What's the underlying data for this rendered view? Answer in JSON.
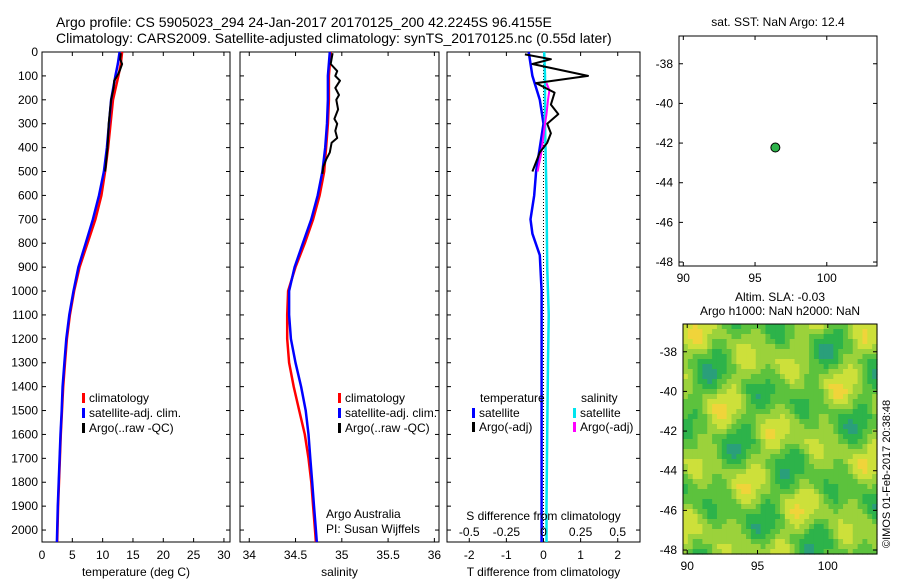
{
  "title_line1": "Argo profile: CS 5905023_294 24-Jan-2017 20170125_200 42.2245S 96.4155E",
  "title_line2": "Climatology: CARS2009. Satellite-adjusted climatology: synTS_20170125.nc (0.55d later)",
  "stamp": "©IMOS 01-Feb-2017 20:38:48",
  "colors": {
    "climatology": "#ff0000",
    "satellite": "#0000ff",
    "argo": "#000000",
    "sal_satellite": "#00e5ee",
    "sal_argo": "#ff00ff",
    "float": "#2db34a"
  },
  "chart_data": [
    {
      "type": "line",
      "xlabel": "temperature (deg C)",
      "ylabel": "",
      "xlim": [
        0,
        31
      ],
      "ylim": [
        2050,
        0
      ],
      "xticks": [
        "0",
        "5",
        "10",
        "15",
        "20",
        "25",
        "30"
      ],
      "yticks": [
        "0",
        "100",
        "200",
        "300",
        "400",
        "500",
        "600",
        "700",
        "800",
        "900",
        "1000",
        "1100",
        "1200",
        "1300",
        "1400",
        "1500",
        "1600",
        "1700",
        "1800",
        "1900",
        "2000"
      ],
      "legend": [
        "climatology",
        "satellite-adj. clim.",
        "Argo(..raw -QC)"
      ],
      "series": [
        {
          "name": "climatology",
          "points": [
            [
              13.2,
              0
            ],
            [
              13.0,
              50
            ],
            [
              12.6,
              100
            ],
            [
              11.7,
              200
            ],
            [
              10.9,
              400
            ],
            [
              10.4,
              500
            ],
            [
              9.8,
              600
            ],
            [
              8.8,
              700
            ],
            [
              7.5,
              800
            ],
            [
              6.2,
              900
            ],
            [
              5.3,
              1000
            ],
            [
              4.6,
              1100
            ],
            [
              4.1,
              1200
            ],
            [
              3.8,
              1300
            ],
            [
              3.5,
              1400
            ],
            [
              3.3,
              1500
            ],
            [
              3.1,
              1600
            ],
            [
              2.95,
              1700
            ],
            [
              2.8,
              1800
            ],
            [
              2.65,
              1900
            ],
            [
              2.55,
              2000
            ],
            [
              2.5,
              2050
            ]
          ]
        },
        {
          "name": "satellite-adj. clim.",
          "points": [
            [
              12.8,
              0
            ],
            [
              12.5,
              50
            ],
            [
              12.1,
              100
            ],
            [
              11.4,
              200
            ],
            [
              10.7,
              400
            ],
            [
              10.2,
              500
            ],
            [
              9.4,
              600
            ],
            [
              8.4,
              700
            ],
            [
              7.2,
              800
            ],
            [
              6.0,
              900
            ],
            [
              5.2,
              1000
            ],
            [
              4.5,
              1100
            ],
            [
              4.0,
              1200
            ],
            [
              3.7,
              1300
            ],
            [
              3.4,
              1400
            ],
            [
              3.25,
              1500
            ],
            [
              3.05,
              1600
            ],
            [
              2.9,
              1700
            ],
            [
              2.75,
              1800
            ],
            [
              2.6,
              1900
            ],
            [
              2.5,
              2000
            ],
            [
              2.45,
              2050
            ]
          ]
        },
        {
          "name": "Argo(..raw -QC)",
          "points": [
            [
              13.0,
              5
            ],
            [
              12.9,
              30
            ],
            [
              13.2,
              50
            ],
            [
              12.8,
              80
            ],
            [
              12.4,
              100
            ],
            [
              11.9,
              120
            ],
            [
              11.8,
              150
            ],
            [
              11.4,
              200
            ],
            [
              11.0,
              300
            ],
            [
              10.8,
              400
            ],
            [
              10.5,
              480
            ],
            [
              10.4,
              500
            ]
          ]
        }
      ]
    },
    {
      "type": "line",
      "xlabel": "salinity",
      "ylabel": "",
      "xlim": [
        33.9,
        36.05
      ],
      "ylim": [
        2050,
        0
      ],
      "xticks": [
        "34",
        "34.5",
        "35",
        "35.5",
        "36"
      ],
      "legend": [
        "climatology",
        "satellite-adj. clim.",
        "Argo(..raw -QC)"
      ],
      "annotation": [
        "Argo Australia",
        "PI: Susan Wijffels"
      ],
      "series": [
        {
          "name": "climatology",
          "points": [
            [
              34.88,
              0
            ],
            [
              34.86,
              100
            ],
            [
              34.86,
              200
            ],
            [
              34.85,
              300
            ],
            [
              34.83,
              400
            ],
            [
              34.81,
              500
            ],
            [
              34.76,
              600
            ],
            [
              34.69,
              700
            ],
            [
              34.6,
              800
            ],
            [
              34.5,
              900
            ],
            [
              34.42,
              1000
            ],
            [
              34.41,
              1100
            ],
            [
              34.41,
              1200
            ],
            [
              34.43,
              1300
            ],
            [
              34.48,
              1400
            ],
            [
              34.54,
              1500
            ],
            [
              34.6,
              1600
            ],
            [
              34.64,
              1700
            ],
            [
              34.67,
              1800
            ],
            [
              34.69,
              1900
            ],
            [
              34.71,
              2000
            ],
            [
              34.72,
              2050
            ]
          ]
        },
        {
          "name": "satellite-adj. clim.",
          "points": [
            [
              34.87,
              0
            ],
            [
              34.85,
              100
            ],
            [
              34.85,
              200
            ],
            [
              34.84,
              300
            ],
            [
              34.82,
              400
            ],
            [
              34.79,
              500
            ],
            [
              34.74,
              600
            ],
            [
              34.67,
              700
            ],
            [
              34.58,
              800
            ],
            [
              34.49,
              900
            ],
            [
              34.43,
              1000
            ],
            [
              34.43,
              1100
            ],
            [
              34.45,
              1200
            ],
            [
              34.5,
              1300
            ],
            [
              34.56,
              1400
            ],
            [
              34.61,
              1500
            ],
            [
              34.64,
              1600
            ],
            [
              34.66,
              1700
            ],
            [
              34.68,
              1800
            ],
            [
              34.7,
              1900
            ],
            [
              34.72,
              2000
            ],
            [
              34.73,
              2050
            ]
          ]
        },
        {
          "name": "Argo(..raw -QC)",
          "points": [
            [
              34.9,
              5
            ],
            [
              34.88,
              50
            ],
            [
              34.95,
              80
            ],
            [
              34.93,
              100
            ],
            [
              34.98,
              120
            ],
            [
              34.93,
              150
            ],
            [
              34.97,
              180
            ],
            [
              34.94,
              200
            ],
            [
              34.96,
              240
            ],
            [
              34.92,
              280
            ],
            [
              34.95,
              300
            ],
            [
              34.93,
              330
            ],
            [
              34.95,
              360
            ],
            [
              34.89,
              380
            ],
            [
              34.87,
              420
            ],
            [
              34.83,
              450
            ],
            [
              34.8,
              480
            ],
            [
              34.79,
              510
            ]
          ]
        }
      ]
    },
    {
      "type": "line",
      "xlabel": "T difference from climatology",
      "ylabel": "",
      "xlim": [
        -2.6,
        2.6
      ],
      "ylim": [
        2050,
        0
      ],
      "xticks": [
        "-2",
        "-1",
        "0",
        "1",
        "2"
      ],
      "top_label": "S difference from climatology",
      "top_ticks": [
        "-0.5",
        "-0.25",
        "0",
        "0.25",
        "0.5"
      ],
      "legend_groups": [
        {
          "title": "temperature",
          "items": [
            "satellite",
            "Argo(-adj)"
          ]
        },
        {
          "title": "salinity",
          "items": [
            "satellite",
            "Argo(-adj)"
          ]
        }
      ],
      "series": [
        {
          "name": "temperature satellite",
          "points": [
            [
              -0.4,
              0
            ],
            [
              -0.3,
              100
            ],
            [
              -0.1,
              200
            ],
            [
              0,
              300
            ],
            [
              -0.1,
              400
            ],
            [
              -0.2,
              500
            ],
            [
              -0.25,
              600
            ],
            [
              -0.35,
              700
            ],
            [
              -0.3,
              760
            ],
            [
              -0.1,
              850
            ],
            [
              -0.05,
              1000
            ],
            [
              -0.05,
              1200
            ],
            [
              -0.05,
              1500
            ],
            [
              -0.05,
              1800
            ],
            [
              -0.05,
              2050
            ]
          ]
        },
        {
          "name": "temperature Argo(-adj)",
          "points": [
            [
              -0.5,
              10
            ],
            [
              0.2,
              30
            ],
            [
              -0.3,
              50
            ],
            [
              1.2,
              100
            ],
            [
              -0.2,
              130
            ],
            [
              0.3,
              170
            ],
            [
              0.2,
              220
            ],
            [
              0.4,
              260
            ],
            [
              0.1,
              300
            ],
            [
              0.2,
              340
            ],
            [
              0.1,
              380
            ],
            [
              -0.1,
              420
            ],
            [
              -0.2,
              460
            ],
            [
              -0.3,
              500
            ]
          ]
        },
        {
          "name": "salinity satellite",
          "points": [
            [
              0.005,
              0
            ],
            [
              0.01,
              100
            ],
            [
              0.01,
              300
            ],
            [
              0.02,
              600
            ],
            [
              0.025,
              900
            ],
            [
              0.035,
              1100
            ],
            [
              0.03,
              1300
            ],
            [
              0.025,
              1600
            ],
            [
              0.02,
              1900
            ],
            [
              0.02,
              2050
            ]
          ]
        },
        {
          "name": "salinity Argo(-adj)",
          "points": [
            [
              0.02,
              130
            ],
            [
              0.04,
              160
            ],
            [
              0.03,
              200
            ],
            [
              0.02,
              260
            ],
            [
              0.01,
              300
            ],
            [
              0.0,
              350
            ],
            [
              -0.01,
              400
            ],
            [
              -0.02,
              440
            ],
            [
              -0.03,
              470
            ],
            [
              -0.04,
              500
            ]
          ]
        }
      ]
    },
    {
      "type": "scatter",
      "title": "sat. SST: NaN Argo: 12.4",
      "xlim": [
        89.7,
        103.5
      ],
      "ylim": [
        -48.2,
        -36.6
      ],
      "xticks": [
        "90",
        "95",
        "100"
      ],
      "yticks": [
        "-38",
        "-40",
        "-42",
        "-44",
        "-46",
        "-48"
      ],
      "points": [
        [
          96.4155,
          -42.2245
        ]
      ]
    },
    {
      "type": "heatmap",
      "title_line1": "Altim. SLA: -0.03",
      "title_line2": "Argo h1000: NaN h2000: NaN",
      "xlim": [
        89.7,
        103.5
      ],
      "ylim": [
        -48.2,
        -36.6
      ],
      "xticks": [
        "90",
        "95",
        "100"
      ],
      "yticks": [
        "-38",
        "-40",
        "-42",
        "-44",
        "-46",
        "-48"
      ],
      "colors": [
        "#2a9f7a",
        "#2db34a",
        "#5cc23d",
        "#9bd23b",
        "#cde03a",
        "#f0d43a"
      ]
    }
  ]
}
